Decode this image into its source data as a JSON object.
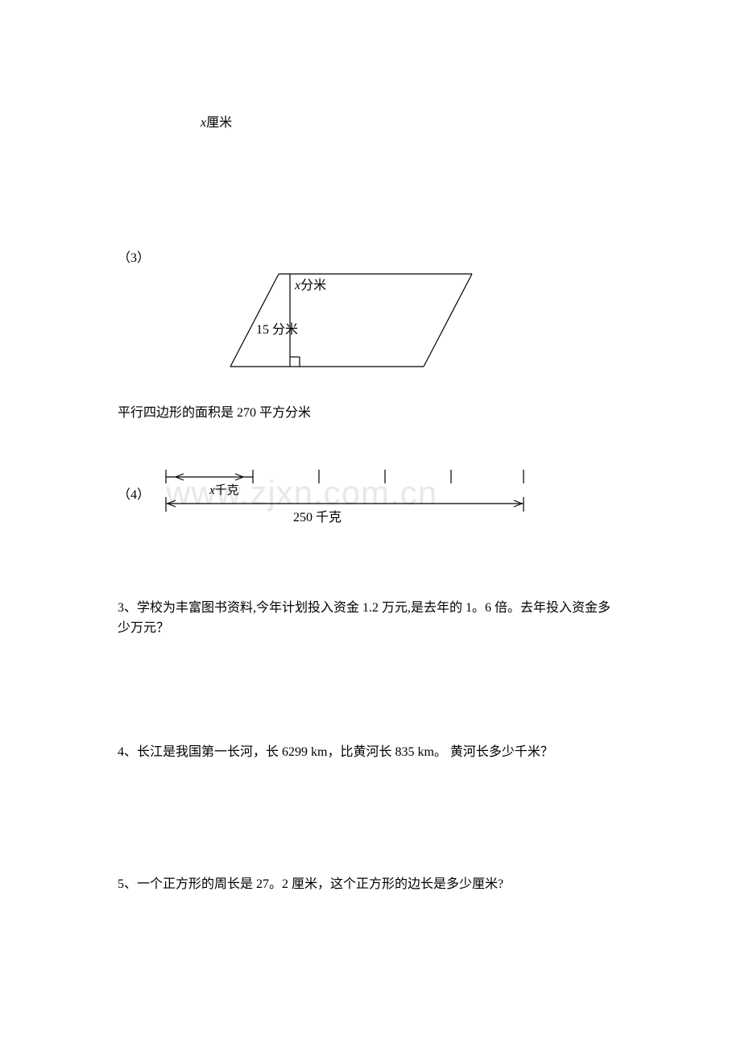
{
  "colors": {
    "stroke": "#000000",
    "background": "#ffffff",
    "watermark": "#e8e8e8"
  },
  "topLabel": {
    "var": "x",
    "unit": "厘米"
  },
  "q3": {
    "num": "（3）",
    "topLabel": {
      "var": "x",
      "unit": "分米"
    },
    "heightLabel": "15 分米",
    "areaText": "平行四边形的面积是 270 平方分米",
    "parallelogram": {
      "topLeftX": 140,
      "topRightX": 380,
      "bottomLeftX": 80,
      "bottomRightX": 320,
      "topY": 5,
      "bottomY": 120,
      "altX": 154,
      "footSize": 12
    }
  },
  "q4": {
    "num": "（4）",
    "xLabel": {
      "var": "x",
      "unit": "千克"
    },
    "totalLabel": "250 千克",
    "bar": {
      "leftX": 8,
      "rightX": 452,
      "topY": 15,
      "botY": 48,
      "tickTopY": 6,
      "tickBotY": 58,
      "segRight": 116,
      "ticks": [
        198,
        280,
        362
      ],
      "arrowLen": 10,
      "segArrowX1": 20,
      "segArrowX2": 104
    }
  },
  "watermark": "www.zjxn.com.cn",
  "questions": {
    "q3text": "3、学校为丰富图书资料,今年计划投入资金 1.2 万元,是去年的 1。6 倍。去年投入资金多少万元？",
    "q4text": "4、长江是我国第一长河，长 6299 km，比黄河长 835 km。 黄河长多少千米？",
    "q5text": "5、一个正方形的周长是 27。2 厘米，这个正方形的边长是多少厘米?"
  }
}
